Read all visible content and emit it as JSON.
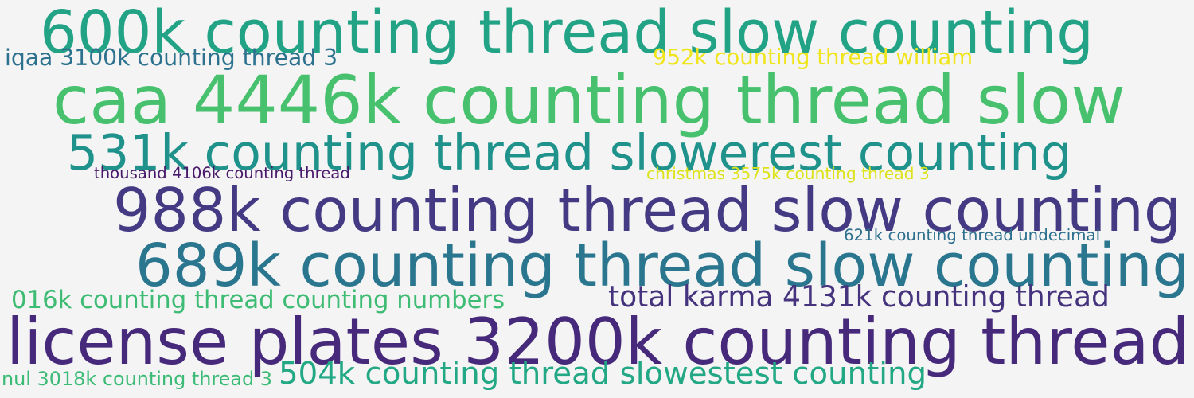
{
  "background": "#f4f4f4",
  "words": [
    {
      "text": "600k counting thread slow counting",
      "color": "#22a385"
    },
    {
      "text": "caa 4446k counting thread slow",
      "color": "#47c16e"
    },
    {
      "text": "531k counting thread slowerest counting",
      "color": "#1f938b"
    },
    {
      "text": "988k counting thread slow counting",
      "color": "#443a83"
    },
    {
      "text": "689k counting thread slow counting",
      "color": "#2a768e"
    },
    {
      "text": "license plates 3200k counting thread",
      "color": "#46297a"
    },
    {
      "text": "iqaa 3100k counting thread 3",
      "color": "#2c718e"
    },
    {
      "text": "952k counting thread william",
      "color": "#f0e51d"
    },
    {
      "text": "thousand 4106k counting thread",
      "color": "#48196b"
    },
    {
      "text": "christmas 3575k counting thread 3",
      "color": "#dde318"
    },
    {
      "text": "621k counting thread undecimal",
      "color": "#2d708e"
    },
    {
      "text": "016k counting thread counting numbers",
      "color": "#3ebc74"
    },
    {
      "text": "total karma 4131k counting thread",
      "color": "#46337e"
    },
    {
      "text": "504k counting thread slowestest counting",
      "color": "#22a884"
    },
    {
      "text": "nul 3018k counting thread 3",
      "color": "#3bbb75"
    }
  ]
}
